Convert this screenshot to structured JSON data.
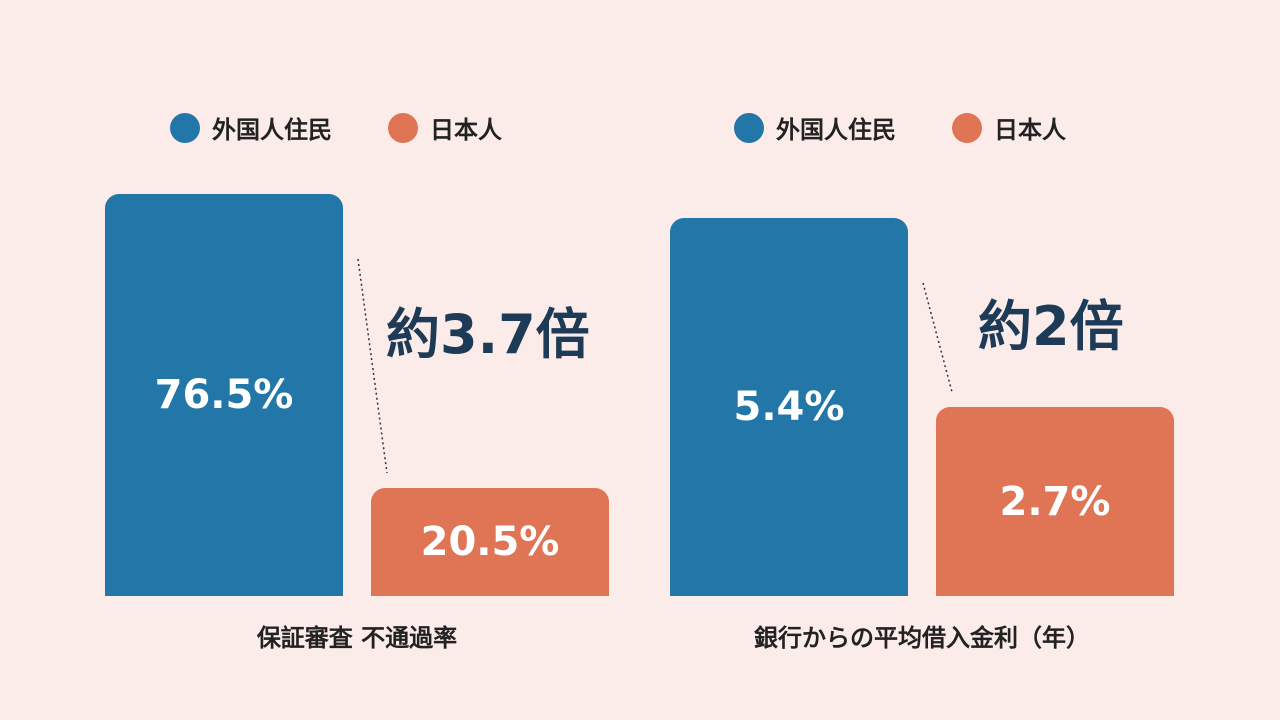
{
  "colors": {
    "foreign": "#2277a8",
    "japanese": "#e07556",
    "background": "#fbecea",
    "multiplier": "#1d3b57"
  },
  "legend": [
    {
      "label": "外国人住民",
      "color": "#2277a8"
    },
    {
      "label": "日本人",
      "color": "#e07556"
    }
  ],
  "chart_data": [
    {
      "type": "bar",
      "title": "保証審査 不通過率",
      "categories": [
        "外国人住民",
        "日本人"
      ],
      "values": [
        76.5,
        20.5
      ],
      "value_labels": [
        "76.5%",
        "20.5%"
      ],
      "multiplier_label": "約3.7倍",
      "ylim": [
        0,
        76.5
      ],
      "grid": false,
      "legend_position": "top"
    },
    {
      "type": "bar",
      "title": "銀行からの平均借入金利（年）",
      "categories": [
        "外国人住民",
        "日本人"
      ],
      "values": [
        5.4,
        2.7
      ],
      "value_labels": [
        "5.4%",
        "2.7%"
      ],
      "multiplier_label": "約2倍",
      "ylim": [
        0,
        5.4
      ],
      "grid": false,
      "legend_position": "top"
    }
  ]
}
